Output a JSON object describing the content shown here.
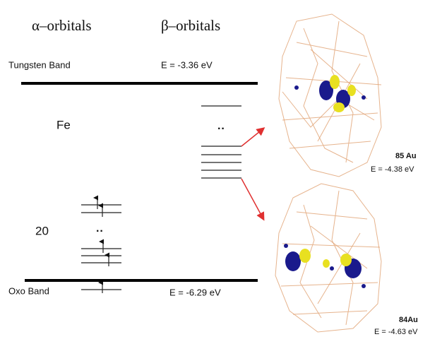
{
  "header": {
    "alpha": "α–orbitals",
    "beta": "β–orbitals"
  },
  "bands": {
    "tungsten": {
      "label": "Tungsten Band",
      "energy": "E = -3.36 eV"
    },
    "oxo": {
      "label": "Oxo Band",
      "energy": "E = -6.29 eV"
    }
  },
  "levels": {
    "fe": "Fe",
    "fe_dots": "··",
    "count": "20",
    "count_dots": "··"
  },
  "orbitals": [
    {
      "label": "85 Au",
      "energy": "E = -4.38 eV"
    },
    {
      "label": "84Au",
      "energy": "E = -4.63 eV"
    }
  ]
}
